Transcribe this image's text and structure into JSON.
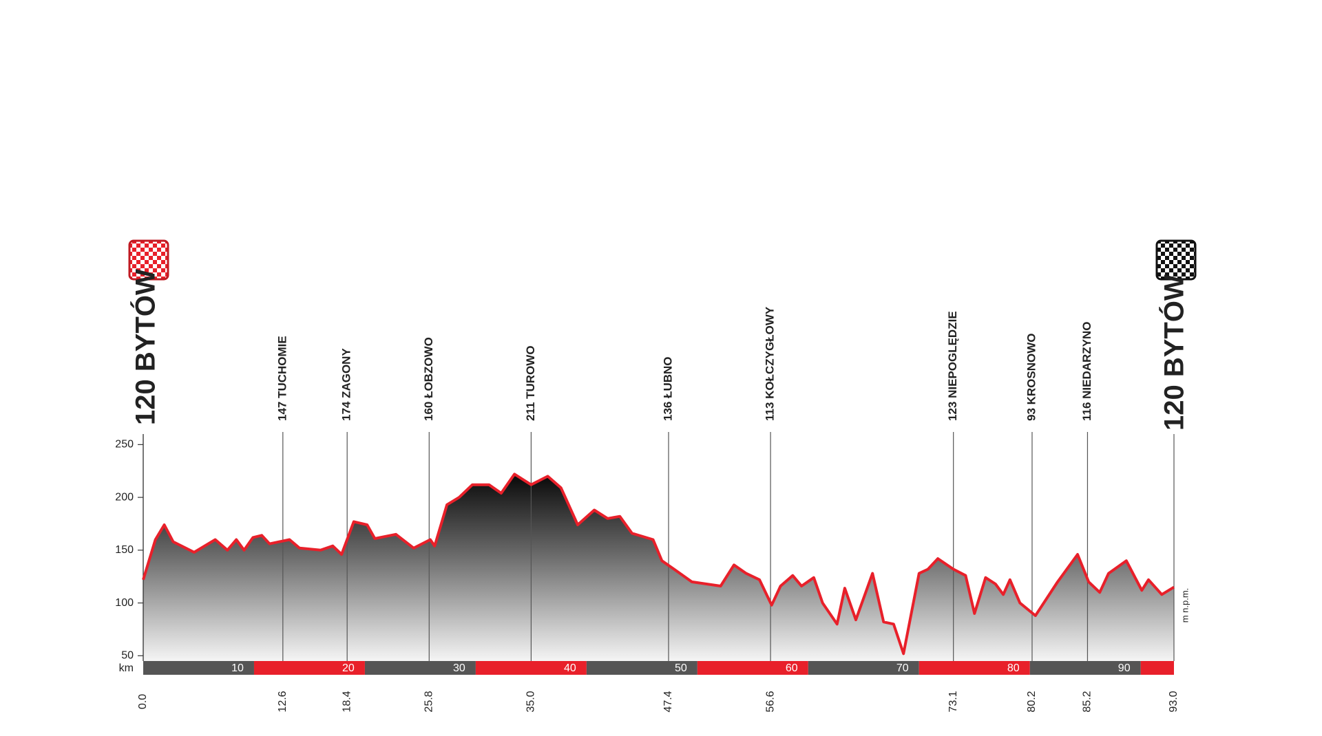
{
  "chart_data": {
    "type": "area",
    "x": [
      0,
      1.1,
      1.9,
      2.7,
      4.6,
      6.5,
      7.6,
      8.4,
      9.1,
      9.9,
      10.7,
      11.4,
      13.2,
      14.1,
      16.0,
      17.1,
      17.9,
      19.0,
      20.2,
      20.9,
      22.8,
      24.4,
      25.9,
      26.3,
      27.4,
      28.5,
      29.7,
      31.2,
      32.3,
      33.5,
      35.0,
      36.5,
      37.7,
      39.2,
      40.7,
      41.9,
      43.0,
      44.1,
      46.0,
      46.8,
      47.9,
      49.5,
      52.1,
      53.3,
      54.4,
      55.6,
      56.7,
      57.5,
      58.6,
      59.4,
      60.5,
      61.3,
      62.6,
      63.3,
      64.3,
      65.8,
      66.8,
      67.7,
      68.6,
      70.0,
      70.8,
      71.7,
      73.1,
      74.2,
      75.0,
      76.0,
      76.9,
      77.6,
      78.2,
      79.1,
      80.5,
      82.5,
      84.3,
      85.3,
      86.3,
      87.1,
      88.7,
      90.1,
      90.7,
      91.9,
      93.0
    ],
    "values": [
      122,
      160,
      174,
      158,
      148,
      160,
      150,
      160,
      150,
      162,
      164,
      156,
      160,
      152,
      150,
      154,
      146,
      177,
      174,
      161,
      165,
      152,
      160,
      154,
      193,
      200,
      212,
      212,
      204,
      222,
      212,
      220,
      209,
      174,
      188,
      180,
      182,
      166,
      160,
      140,
      132,
      120,
      116,
      136,
      128,
      122,
      98,
      116,
      126,
      116,
      124,
      100,
      80,
      114,
      84,
      128,
      82,
      80,
      52,
      128,
      132,
      142,
      132,
      126,
      90,
      124,
      118,
      108,
      122,
      100,
      88,
      120,
      146,
      120,
      110,
      128,
      140,
      112,
      122,
      108,
      115
    ],
    "color": "#e8202a",
    "xlim": [
      0,
      93
    ],
    "ylim": [
      45,
      260
    ],
    "yticks": [
      50,
      100,
      150,
      200,
      250
    ],
    "xticks": [
      {
        "value": 0,
        "label": "0.0"
      },
      12.6,
      18.4,
      25.8,
      {
        "value": 35,
        "label": "35.0"
      },
      47.4,
      56.6,
      73.1,
      80.2,
      85.2,
      {
        "value": 93,
        "label": "93.0"
      }
    ],
    "waypoints": [
      "147 TUCHOMIE",
      "174 ZAGONY",
      "160 ŁOBZOWO",
      "211 TUROWO",
      "136 ŁUBNO",
      "113 KOŁCZYGŁOWY",
      "123 NIEPOGLĘDZIE",
      "93 KROSNOWO",
      "116 NIEDARZYNO"
    ],
    "start_label": "120 BYTÓW",
    "finish_label": "120 BYTÓW",
    "km_marks": [
      10,
      20,
      30,
      40,
      50,
      60,
      70,
      80,
      90
    ],
    "km_label": "km",
    "y_unit": "m n.p.m."
  }
}
